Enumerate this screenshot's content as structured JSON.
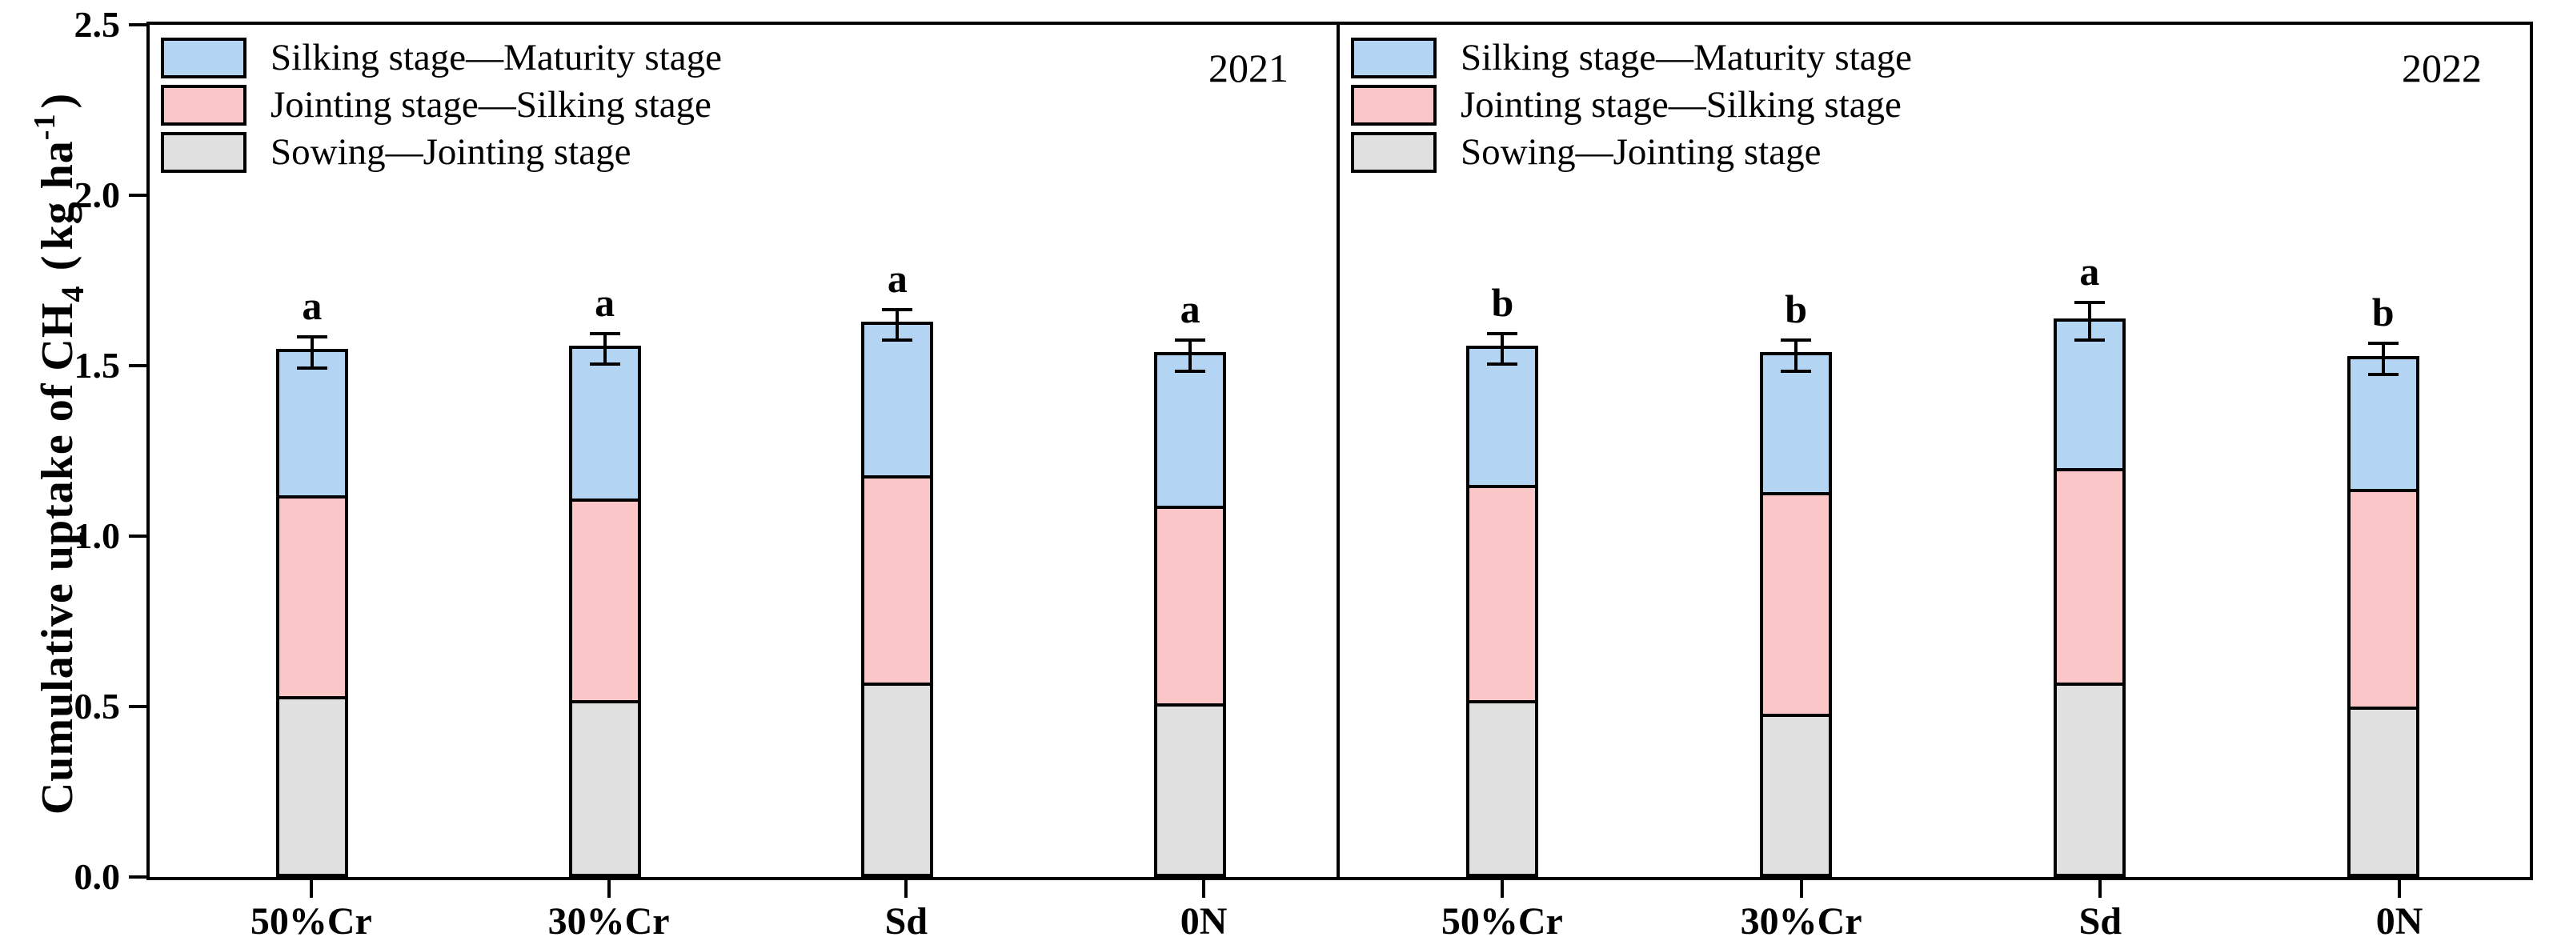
{
  "figure": {
    "ylabel": {
      "prefix": "Cumulative uptake of CH",
      "sub": "4",
      "open_paren": "(",
      "mid": "kg ha",
      "sup": "-1",
      "close_paren": ")"
    }
  },
  "chart_data": {
    "type": "bar",
    "stacked": true,
    "title": "",
    "ylabel_text": "Cumulative uptake of CH4 (kg ha-1)",
    "xlabel": "",
    "ylim": [
      0,
      2.5
    ],
    "yticks": [
      "0.0",
      "0.5",
      "1.0",
      "1.5",
      "2.0",
      "2.5"
    ],
    "grid": false,
    "legend_position": "top-left-of-each-panel",
    "categories": [
      "50%Cr",
      "30%Cr",
      "Sd",
      "0N"
    ],
    "legend": [
      {
        "key": "silking_maturity",
        "label": "Silking stage—Maturity stage",
        "color": "#B3D4F2"
      },
      {
        "key": "jointing_silking",
        "label": "Jointing stage—Silking stage",
        "color": "#FBC6C8"
      },
      {
        "key": "sowing_jointing",
        "label": "Sowing—Jointing stage",
        "color": "#E0E0E0"
      }
    ],
    "colors": {
      "silking_maturity": "#B3D4F2",
      "jointing_silking": "#FBC6C8",
      "sowing_jointing": "#E0E0E0",
      "axis": "#000000"
    },
    "panels": [
      {
        "year": "2021",
        "bars": [
          {
            "category": "50%Cr",
            "sowing_jointing": 0.52,
            "jointing_silking": 0.59,
            "silking_maturity": 0.42,
            "total": 1.53,
            "error": 0.05,
            "sig_letter": "a"
          },
          {
            "category": "30%Cr",
            "sowing_jointing": 0.51,
            "jointing_silking": 0.59,
            "silking_maturity": 0.44,
            "total": 1.54,
            "error": 0.05,
            "sig_letter": "a"
          },
          {
            "category": "Sd",
            "sowing_jointing": 0.56,
            "jointing_silking": 0.61,
            "silking_maturity": 0.44,
            "total": 1.61,
            "error": 0.05,
            "sig_letter": "a"
          },
          {
            "category": "0N",
            "sowing_jointing": 0.5,
            "jointing_silking": 0.58,
            "silking_maturity": 0.44,
            "total": 1.52,
            "error": 0.05,
            "sig_letter": "a"
          }
        ]
      },
      {
        "year": "2022",
        "bars": [
          {
            "category": "50%Cr",
            "sowing_jointing": 0.51,
            "jointing_silking": 0.63,
            "silking_maturity": 0.4,
            "total": 1.54,
            "error": 0.05,
            "sig_letter": "b"
          },
          {
            "category": "30%Cr",
            "sowing_jointing": 0.47,
            "jointing_silking": 0.65,
            "silking_maturity": 0.4,
            "total": 1.52,
            "error": 0.05,
            "sig_letter": "b"
          },
          {
            "category": "Sd",
            "sowing_jointing": 0.56,
            "jointing_silking": 0.63,
            "silking_maturity": 0.43,
            "total": 1.62,
            "error": 0.06,
            "sig_letter": "a"
          },
          {
            "category": "0N",
            "sowing_jointing": 0.49,
            "jointing_silking": 0.64,
            "silking_maturity": 0.38,
            "total": 1.51,
            "error": 0.05,
            "sig_letter": "b"
          }
        ]
      }
    ]
  }
}
